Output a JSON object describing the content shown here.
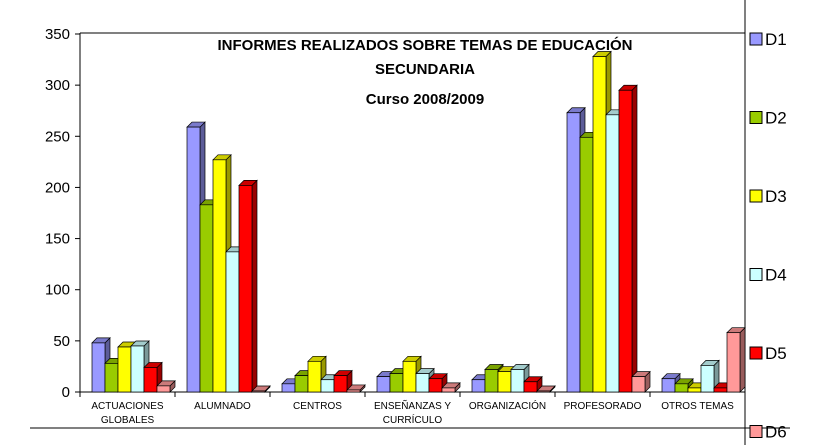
{
  "chart_data": {
    "type": "bar3d",
    "title": "INFORMES REALIZADOS SOBRE TEMAS DE EDUCACIÓN SECUNDARIA",
    "subtitle": "Curso 2008/2009",
    "categories": [
      "ACTUACIONES GLOBALES",
      "ALUMNADO",
      "CENTROS",
      "ENSEÑANZAS Y CURRÍCULO",
      "ORGANIZACIÓN",
      "PROFESORADO",
      "OTROS TEMAS"
    ],
    "series": [
      {
        "name": "D1",
        "color": "#9999ff",
        "values": [
          48,
          259,
          8,
          15,
          12,
          273,
          13
        ]
      },
      {
        "name": "D2",
        "color": "#99cc00",
        "values": [
          28,
          183,
          16,
          18,
          22,
          249,
          8
        ]
      },
      {
        "name": "D3",
        "color": "#ffff00",
        "values": [
          44,
          227,
          30,
          30,
          20,
          328,
          4
        ]
      },
      {
        "name": "D4",
        "color": "#ccffff",
        "values": [
          45,
          137,
          12,
          18,
          22,
          271,
          26
        ]
      },
      {
        "name": "D5",
        "color": "#ff0000",
        "values": [
          24,
          202,
          16,
          13,
          10,
          295,
          4
        ]
      },
      {
        "name": "D6",
        "color": "#ff9999",
        "values": [
          6,
          1,
          2,
          4,
          1,
          15,
          58
        ]
      }
    ],
    "ylim": [
      0,
      350
    ],
    "yticks": [
      0,
      50,
      100,
      150,
      200,
      250,
      300,
      350
    ],
    "legend": "right"
  }
}
